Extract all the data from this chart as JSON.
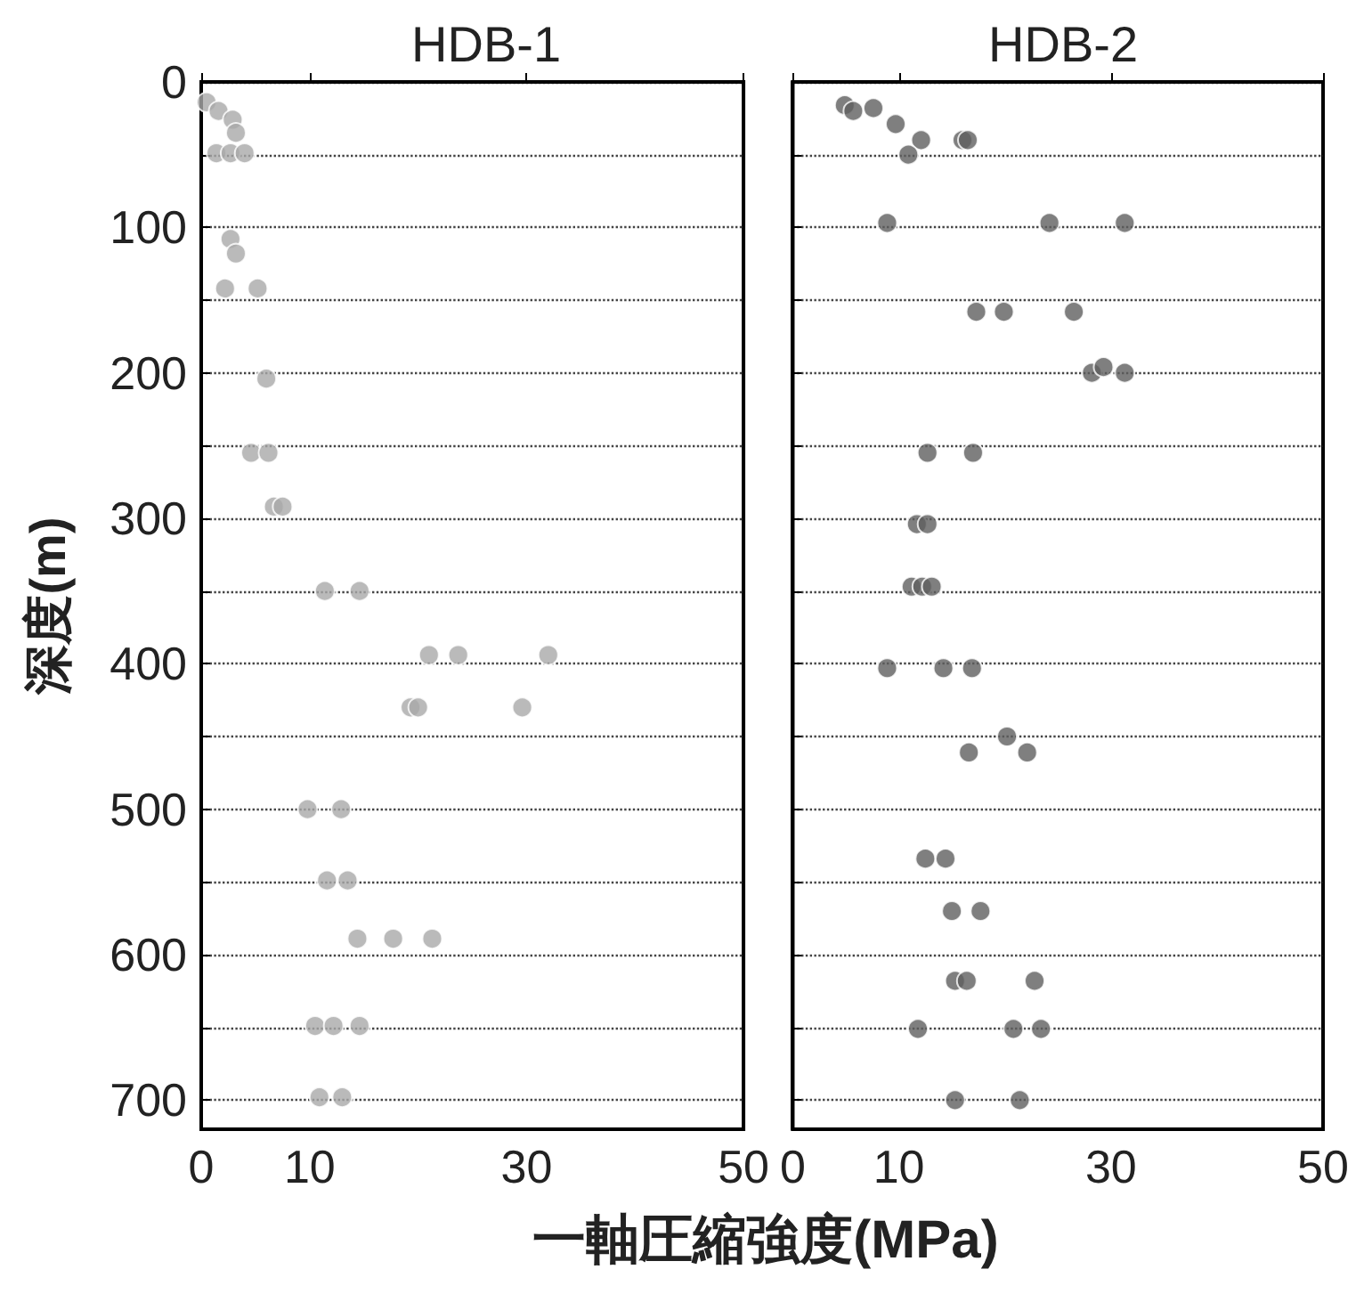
{
  "chart_data": [
    {
      "type": "scatter",
      "title": "HDB-1",
      "ylabel": "深度(m)",
      "xlabel": "一軸圧縮強度(MPa)",
      "marker": "circle",
      "grid": "y",
      "xlim": [
        0,
        50
      ],
      "xticks": [
        0,
        10,
        30,
        50
      ],
      "ylim": [
        720,
        0
      ],
      "yticks": [
        0,
        {
          "value": 50,
          "label": null
        },
        100,
        {
          "value": 150,
          "label": null
        },
        200,
        {
          "value": 250,
          "label": null
        },
        300,
        {
          "value": 350,
          "label": null
        },
        400,
        {
          "value": 450,
          "label": null
        },
        500,
        {
          "value": 550,
          "label": null
        },
        600,
        {
          "value": 650,
          "label": null
        },
        700
      ],
      "series": [
        {
          "color": "#a9a9a9",
          "x": [
            0.5,
            1.6,
            2.9,
            3.2,
            1.4,
            2.7,
            4.0,
            2.7,
            3.2,
            2.2,
            5.2,
            6.0,
            4.6,
            6.2,
            6.7,
            7.5,
            11.4,
            14.6,
            21.0,
            23.7,
            32.0,
            19.3,
            20.0,
            29.6,
            9.8,
            12.9,
            11.6,
            13.5,
            14.4,
            17.7,
            21.3,
            10.5,
            12.2,
            14.6,
            10.9,
            13.0
          ],
          "values": [
            14,
            20,
            26,
            35,
            49,
            49,
            49,
            108,
            118,
            142,
            142,
            204,
            255,
            255,
            292,
            292,
            350,
            350,
            394,
            394,
            394,
            430,
            430,
            430,
            500,
            500,
            549,
            549,
            589,
            589,
            589,
            649,
            649,
            649,
            698,
            698
          ]
        }
      ]
    },
    {
      "type": "scatter",
      "title": "HDB-2",
      "marker": "circle",
      "grid": "y",
      "tick_labels": "x",
      "xlim": [
        0,
        50
      ],
      "xticks": [
        0,
        10,
        30,
        50
      ],
      "ylim": [
        720,
        0
      ],
      "yticks": [
        0,
        {
          "value": 50,
          "label": null
        },
        100,
        {
          "value": 150,
          "label": null
        },
        200,
        {
          "value": 250,
          "label": null
        },
        300,
        {
          "value": 350,
          "label": null
        },
        400,
        {
          "value": 450,
          "label": null
        },
        500,
        {
          "value": 550,
          "label": null
        },
        600,
        {
          "value": 650,
          "label": null
        },
        700
      ],
      "series": [
        {
          "color": "#5f5f5f",
          "x": [
            4.9,
            5.7,
            7.6,
            9.7,
            12.1,
            10.9,
            16.0,
            16.5,
            8.9,
            24.2,
            31.3,
            17.3,
            19.9,
            26.5,
            28.2,
            29.3,
            31.3,
            12.7,
            17.0,
            11.7,
            12.7,
            11.2,
            12.2,
            13.1,
            8.9,
            14.2,
            16.9,
            20.2,
            16.6,
            22.1,
            12.5,
            14.4,
            15.0,
            17.7,
            15.3,
            16.4,
            22.8,
            11.8,
            20.8,
            23.4,
            15.3,
            21.4
          ],
          "values": [
            16,
            20,
            18,
            29,
            40,
            50,
            40,
            40,
            97,
            97,
            97,
            158,
            158,
            158,
            200,
            196,
            200,
            255,
            255,
            304,
            304,
            347,
            347,
            347,
            403,
            403,
            403,
            450,
            461,
            461,
            534,
            534,
            570,
            570,
            618,
            618,
            618,
            651,
            651,
            651,
            700,
            700
          ]
        }
      ]
    }
  ]
}
